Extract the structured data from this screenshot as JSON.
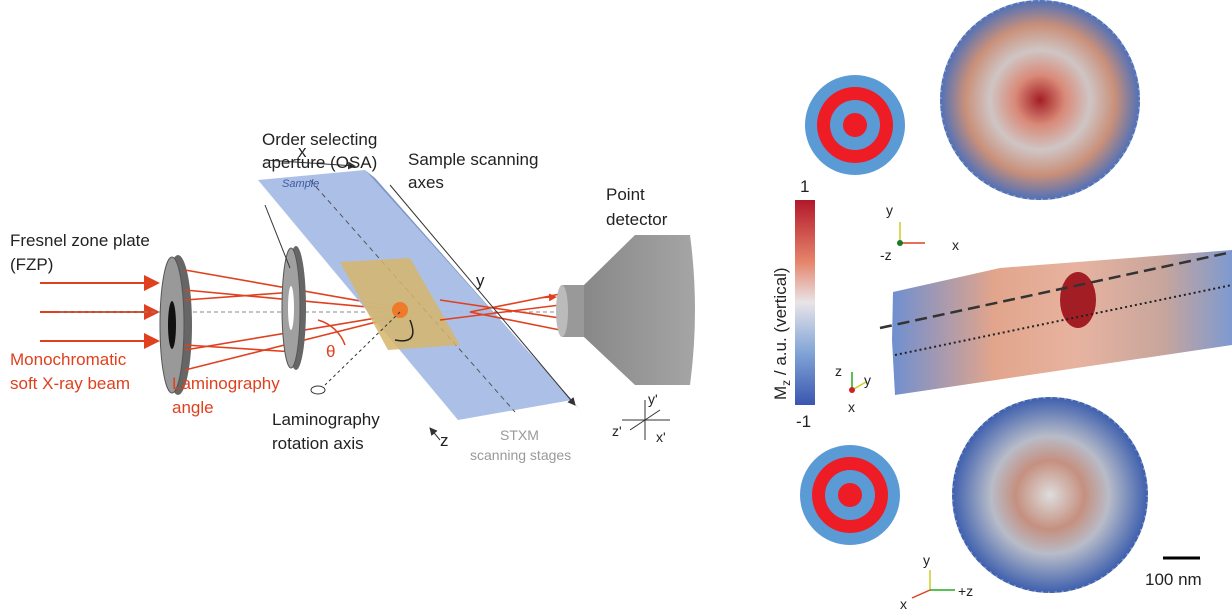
{
  "left_panel": {
    "osa_label": [
      "Order selecting",
      "aperture (OSA)"
    ],
    "x_axis": "x",
    "sample": "Sample",
    "scanning_axes": [
      "Sample scanning",
      "axes"
    ],
    "detector": [
      "Point",
      "detector"
    ],
    "fzp": [
      "Fresnel zone plate",
      "(FZP)"
    ],
    "y_axis": "y",
    "theta": "θ",
    "beam": [
      "Monochromatic",
      "soft X-ray beam"
    ],
    "lam_angle": [
      "Laminography",
      "angle"
    ],
    "rot_axis": [
      "Laminography",
      "rotation axis"
    ],
    "z_axis": "z",
    "stages": [
      "STXM",
      "scanning stages"
    ],
    "detector_axes": [
      "y'",
      "z'",
      "x'"
    ]
  },
  "right_panel": {
    "colorbar": {
      "max": "1",
      "min": "-1",
      "label": [
        "M",
        "z",
        " / a.u. (vertical)"
      ]
    },
    "top_axes": [
      "y",
      "-z",
      "x"
    ],
    "mid_axes": [
      "z",
      "y",
      "x"
    ],
    "bottom_axes": [
      "y",
      "x",
      "+z"
    ],
    "scale_bar": "100 nm"
  }
}
